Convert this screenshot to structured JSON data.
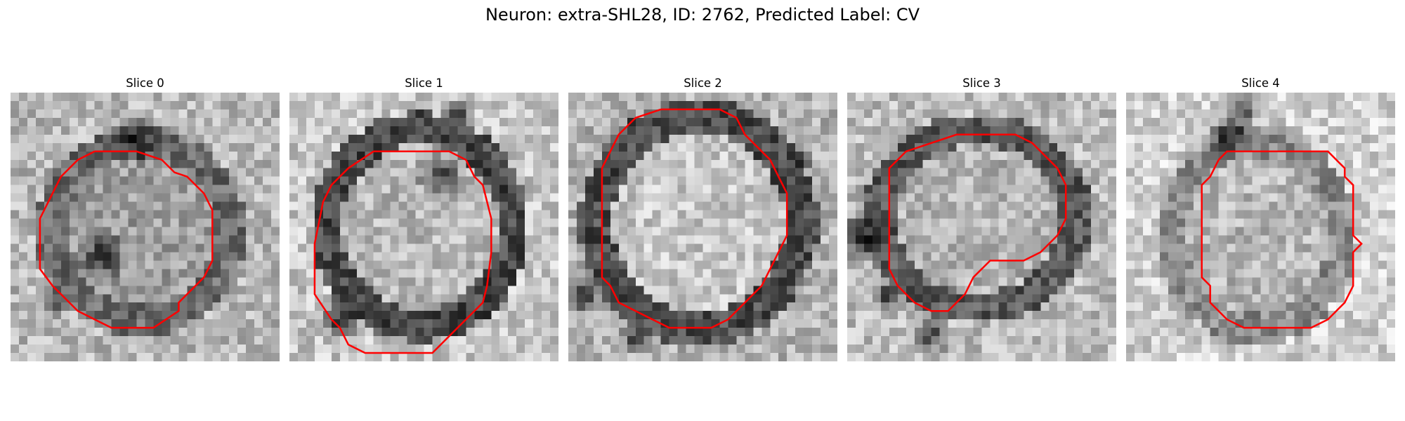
{
  "figure": {
    "title": "Neuron: extra-SHL28, ID: 2762, Predicted Label: CV"
  },
  "colors": {
    "contour": "#ff0000",
    "dark": "#111111",
    "light": "#f2f2f2"
  },
  "panels": [
    {
      "title": "Slice 0",
      "image": "grayscale electron-microscopy patch; dark ring around a roundish cell body, dark band near lower left",
      "contour_color": "red"
    },
    {
      "title": "Slice 1",
      "image": "grayscale electron-microscopy patch; bright cell interior with dark speckled boundary",
      "contour_color": "red"
    },
    {
      "title": "Slice 2",
      "image": "grayscale electron-microscopy patch; large bright cell body with dark membrane ring",
      "contour_color": "red"
    },
    {
      "title": "Slice 3",
      "image": "grayscale electron-microscopy patch; bright cell body with dark membrane on left side",
      "contour_color": "red"
    },
    {
      "title": "Slice 4",
      "image": "grayscale electron-microscopy patch; dark blob at top center, lighter rounded region below",
      "contour_color": "red"
    }
  ]
}
